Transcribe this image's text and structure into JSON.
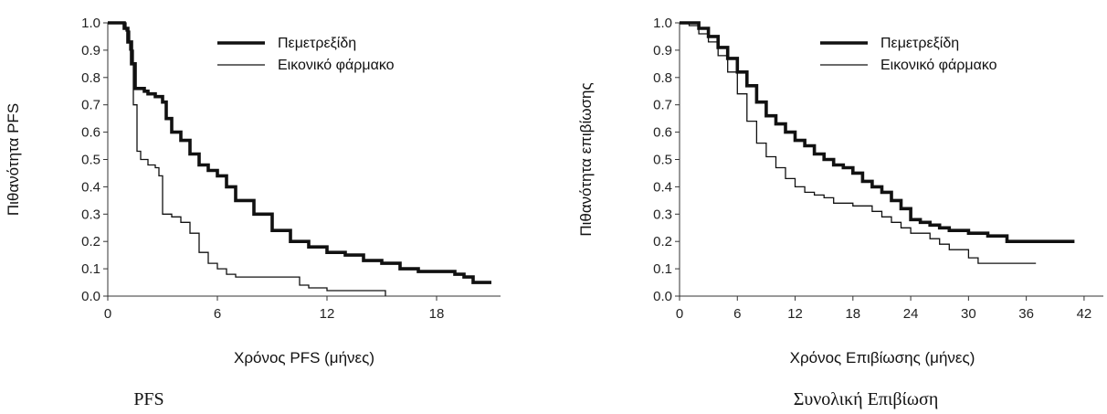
{
  "chart_data": [
    {
      "type": "line",
      "subtitle": "PFS",
      "xlabel": "Χρόνος PFS (μήνες)",
      "ylabel": "Πιθανότητα PFS",
      "xlim": [
        0,
        21.5
      ],
      "ylim": [
        0,
        1
      ],
      "x_ticks": [
        "0",
        "6",
        "12",
        "18"
      ],
      "y_ticks": [
        "0.0",
        "0.1",
        "0.2",
        "0.3",
        "0.4",
        "0.5",
        "0.6",
        "0.7",
        "0.8",
        "0.9",
        "1.0"
      ],
      "legend_position": "top-right",
      "grid": false,
      "series": [
        {
          "name": "Πεμετρεξίδη",
          "style": "thick",
          "color": "#111111",
          "points": [
            [
              0,
              1.0
            ],
            [
              0.7,
              1.0
            ],
            [
              0.9,
              0.98
            ],
            [
              1.1,
              0.93
            ],
            [
              1.3,
              0.85
            ],
            [
              1.5,
              0.76
            ],
            [
              2.0,
              0.75
            ],
            [
              2.2,
              0.74
            ],
            [
              2.6,
              0.73
            ],
            [
              3.0,
              0.71
            ],
            [
              3.2,
              0.65
            ],
            [
              3.5,
              0.6
            ],
            [
              4.0,
              0.57
            ],
            [
              4.5,
              0.52
            ],
            [
              5.0,
              0.48
            ],
            [
              5.5,
              0.46
            ],
            [
              6.0,
              0.44
            ],
            [
              6.5,
              0.4
            ],
            [
              7.0,
              0.35
            ],
            [
              8.0,
              0.3
            ],
            [
              9.0,
              0.24
            ],
            [
              10.0,
              0.2
            ],
            [
              11.0,
              0.18
            ],
            [
              12.0,
              0.16
            ],
            [
              13.0,
              0.15
            ],
            [
              14.0,
              0.13
            ],
            [
              15.0,
              0.12
            ],
            [
              16.0,
              0.1
            ],
            [
              17.0,
              0.09
            ],
            [
              18.5,
              0.09
            ],
            [
              19.0,
              0.08
            ],
            [
              19.5,
              0.07
            ],
            [
              20.0,
              0.05
            ],
            [
              21.0,
              0.05
            ]
          ]
        },
        {
          "name": "Εικονικό φάρμακο",
          "style": "thin",
          "color": "#111111",
          "points": [
            [
              0,
              1.0
            ],
            [
              0.8,
              1.0
            ],
            [
              1.0,
              0.97
            ],
            [
              1.2,
              0.9
            ],
            [
              1.4,
              0.7
            ],
            [
              1.6,
              0.53
            ],
            [
              1.8,
              0.5
            ],
            [
              2.2,
              0.48
            ],
            [
              2.6,
              0.47
            ],
            [
              2.8,
              0.44
            ],
            [
              3.0,
              0.3
            ],
            [
              3.5,
              0.29
            ],
            [
              4.0,
              0.27
            ],
            [
              4.5,
              0.23
            ],
            [
              5.0,
              0.16
            ],
            [
              5.5,
              0.12
            ],
            [
              6.0,
              0.1
            ],
            [
              6.5,
              0.08
            ],
            [
              7.0,
              0.07
            ],
            [
              10.0,
              0.07
            ],
            [
              10.5,
              0.04
            ],
            [
              11.0,
              0.03
            ],
            [
              12.0,
              0.02
            ],
            [
              15.0,
              0.02
            ],
            [
              15.2,
              0.0
            ]
          ]
        }
      ]
    },
    {
      "type": "line",
      "subtitle": "Συνολική Επιβίωση",
      "xlabel": "Χρόνος Επιβίωσης (μήνες)",
      "ylabel": "Πιθανότητα επιβίωσης",
      "xlim": [
        0,
        44
      ],
      "ylim": [
        0,
        1
      ],
      "x_ticks": [
        "0",
        "6",
        "12",
        "18",
        "24",
        "30",
        "36",
        "42"
      ],
      "y_ticks": [
        "0.0",
        "0.1",
        "0.2",
        "0.3",
        "0.4",
        "0.5",
        "0.6",
        "0.7",
        "0.8",
        "0.9",
        "1.0"
      ],
      "legend_position": "top-right",
      "grid": false,
      "series": [
        {
          "name": "Πεμετρεξίδη",
          "style": "thick",
          "color": "#111111",
          "points": [
            [
              0,
              1.0
            ],
            [
              1,
              1.0
            ],
            [
              2,
              0.98
            ],
            [
              3,
              0.95
            ],
            [
              4,
              0.91
            ],
            [
              5,
              0.87
            ],
            [
              6,
              0.82
            ],
            [
              7,
              0.77
            ],
            [
              8,
              0.71
            ],
            [
              9,
              0.66
            ],
            [
              10,
              0.63
            ],
            [
              11,
              0.6
            ],
            [
              12,
              0.57
            ],
            [
              13,
              0.55
            ],
            [
              14,
              0.52
            ],
            [
              15,
              0.5
            ],
            [
              16,
              0.48
            ],
            [
              17,
              0.47
            ],
            [
              18,
              0.45
            ],
            [
              19,
              0.42
            ],
            [
              20,
              0.4
            ],
            [
              21,
              0.38
            ],
            [
              22,
              0.35
            ],
            [
              23,
              0.32
            ],
            [
              24,
              0.28
            ],
            [
              25,
              0.27
            ],
            [
              26,
              0.26
            ],
            [
              27,
              0.25
            ],
            [
              28,
              0.24
            ],
            [
              30,
              0.23
            ],
            [
              31,
              0.23
            ],
            [
              32,
              0.22
            ],
            [
              33,
              0.22
            ],
            [
              34,
              0.2
            ],
            [
              36,
              0.2
            ],
            [
              38,
              0.2
            ],
            [
              41,
              0.2
            ]
          ]
        },
        {
          "name": "Εικονικό φάρμακο",
          "style": "thin",
          "color": "#111111",
          "points": [
            [
              0,
              1.0
            ],
            [
              1,
              0.99
            ],
            [
              2,
              0.96
            ],
            [
              3,
              0.93
            ],
            [
              4,
              0.88
            ],
            [
              5,
              0.82
            ],
            [
              6,
              0.74
            ],
            [
              7,
              0.64
            ],
            [
              8,
              0.56
            ],
            [
              9,
              0.51
            ],
            [
              10,
              0.47
            ],
            [
              11,
              0.43
            ],
            [
              12,
              0.4
            ],
            [
              13,
              0.38
            ],
            [
              14,
              0.37
            ],
            [
              15,
              0.36
            ],
            [
              16,
              0.34
            ],
            [
              18,
              0.33
            ],
            [
              20,
              0.31
            ],
            [
              21,
              0.29
            ],
            [
              22,
              0.27
            ],
            [
              23,
              0.25
            ],
            [
              24,
              0.23
            ],
            [
              26,
              0.21
            ],
            [
              27,
              0.19
            ],
            [
              28,
              0.17
            ],
            [
              30,
              0.14
            ],
            [
              31,
              0.12
            ],
            [
              34,
              0.12
            ],
            [
              37,
              0.12
            ]
          ]
        }
      ]
    }
  ]
}
